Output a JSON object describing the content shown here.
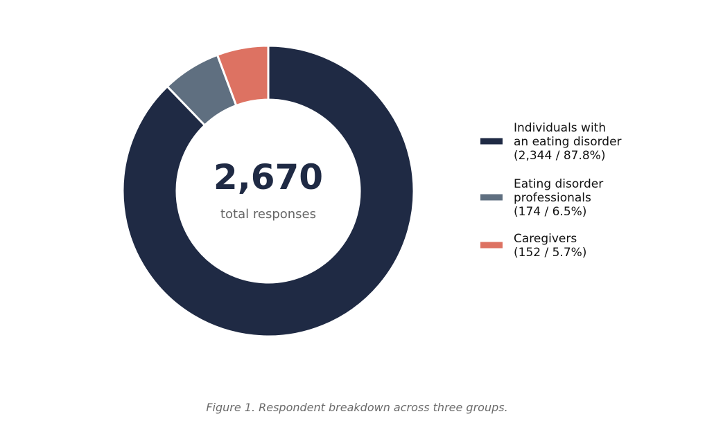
{
  "chart_data": {
    "type": "pie",
    "variant": "donut",
    "center": {
      "total": "2,670",
      "label": "total responses"
    },
    "series": [
      {
        "name": "Individuals with an eating disorder",
        "value": 2344,
        "percent": 87.8,
        "color": "#1f2a44",
        "legend_lines": [
          "Individuals with",
          "an eating disorder",
          "(2,344 / 87.8%)"
        ]
      },
      {
        "name": "Eating disorder professionals",
        "value": 174,
        "percent": 6.5,
        "color": "#5f6f80",
        "legend_lines": [
          "Eating disorder",
          "professionals",
          "(174 / 6.5%)"
        ]
      },
      {
        "name": "Caregivers",
        "value": 152,
        "percent": 5.7,
        "color": "#dd7262",
        "legend_lines": [
          "Caregivers",
          "(152 / 5.7%)"
        ]
      }
    ],
    "legend_placement": "right",
    "start": "top",
    "direction": "clockwise"
  },
  "caption": "Figure 1. Respondent breakdown across three groups."
}
